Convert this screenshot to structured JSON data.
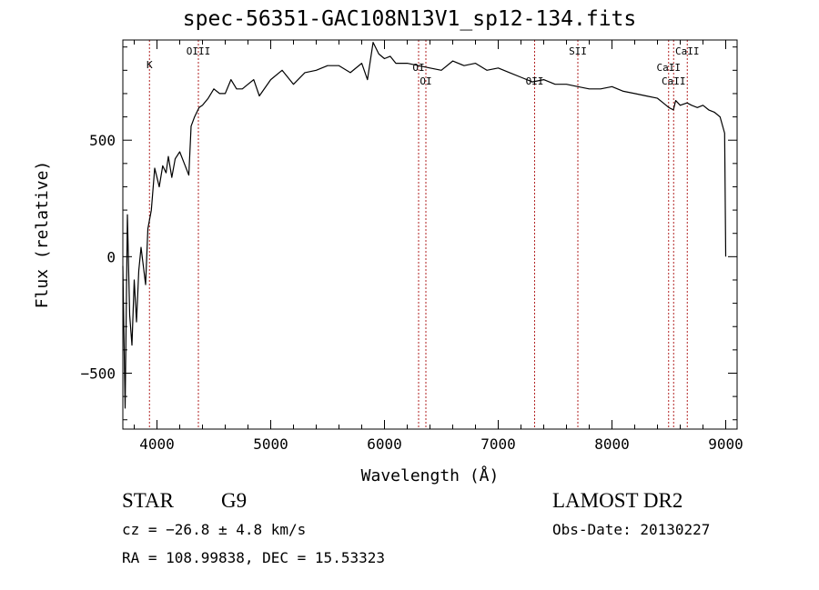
{
  "header": {
    "title": "spec-56351-GAC108N13V1_sp12-134.fits"
  },
  "info": {
    "object_class": "STAR",
    "subclass": "G9",
    "survey": "LAMOST DR2",
    "cz": "cz = −26.8 ± 4.8 km/s",
    "obs_date": "Obs-Date: 20130227",
    "radec": "RA = 108.99838, DEC =  15.53323"
  },
  "chart_data": {
    "type": "line",
    "title": "spec-56351-GAC108N13V1_sp12-134.fits",
    "xlabel": "Wavelength (Å)",
    "ylabel": "Flux (relative)",
    "xlim": [
      3700,
      9100
    ],
    "ylim": [
      -740,
      930
    ],
    "xticks": [
      4000,
      5000,
      6000,
      7000,
      8000,
      9000
    ],
    "yticks": [
      -500,
      0,
      500
    ],
    "grid": false,
    "line_color": "#000000",
    "marker_color": "#b22222",
    "spectral_lines": [
      {
        "label": "K",
        "wavelength": 3934
      },
      {
        "label": "OIII",
        "wavelength": 4364
      },
      {
        "label": "OI",
        "wavelength": 6300
      },
      {
        "label": "OI",
        "wavelength": 6364
      },
      {
        "label": "OII",
        "wavelength": 7320
      },
      {
        "label": "SII",
        "wavelength": 7700
      },
      {
        "label": "CaII",
        "wavelength": 8498
      },
      {
        "label": "CaII",
        "wavelength": 8542
      },
      {
        "label": "CaII",
        "wavelength": 8662
      }
    ],
    "series": [
      {
        "x": [
          3700,
          3720,
          3740,
          3760,
          3780,
          3800,
          3820,
          3840,
          3860,
          3880,
          3900,
          3920,
          3950,
          3980,
          4000,
          4020,
          4050,
          4080,
          4100,
          4130,
          4160,
          4200,
          4240,
          4280,
          4300,
          4330,
          4370,
          4400,
          4450,
          4500,
          4550,
          4600,
          4650,
          4700,
          4750,
          4800,
          4850,
          4900,
          5000,
          5100,
          5200,
          5300,
          5400,
          5500,
          5600,
          5700,
          5800,
          5850,
          5900,
          5950,
          6000,
          6050,
          6100,
          6200,
          6300,
          6400,
          6500,
          6600,
          6700,
          6800,
          6900,
          7000,
          7100,
          7200,
          7300,
          7400,
          7500,
          7600,
          7700,
          7800,
          7900,
          8000,
          8100,
          8200,
          8300,
          8400,
          8450,
          8500,
          8540,
          8560,
          8600,
          8660,
          8700,
          8750,
          8800,
          8850,
          8900,
          8950,
          8990,
          9000
        ],
        "values": [
          -40,
          -650,
          180,
          -250,
          -380,
          -100,
          -280,
          -60,
          40,
          -40,
          -120,
          120,
          200,
          380,
          340,
          300,
          390,
          360,
          430,
          340,
          420,
          450,
          400,
          350,
          560,
          600,
          640,
          650,
          680,
          720,
          700,
          700,
          760,
          720,
          720,
          740,
          760,
          690,
          760,
          800,
          740,
          790,
          800,
          820,
          820,
          790,
          830,
          760,
          920,
          870,
          850,
          860,
          830,
          830,
          820,
          810,
          800,
          840,
          820,
          830,
          800,
          810,
          790,
          770,
          750,
          760,
          740,
          740,
          730,
          720,
          720,
          730,
          710,
          700,
          690,
          680,
          660,
          640,
          630,
          670,
          650,
          660,
          650,
          640,
          650,
          630,
          620,
          600,
          530,
          0
        ]
      }
    ]
  }
}
